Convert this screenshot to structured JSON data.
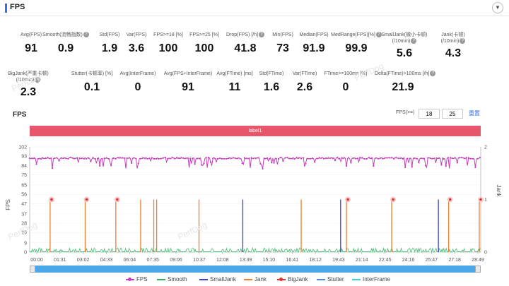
{
  "header": {
    "title": "FPS",
    "collapse_icon": "chevron-down-icon"
  },
  "metrics_row1": [
    {
      "label": "Avg(FPS)",
      "value": "91",
      "help": false
    },
    {
      "label": "Smooth(流畅指数)",
      "value": "0.9",
      "help": true
    },
    {
      "label": "Std(FPS)",
      "value": "1.9",
      "help": false
    },
    {
      "label": "Var(FPS)",
      "value": "3.6",
      "help": false
    },
    {
      "label": "FPS>=18 [%]",
      "value": "100",
      "help": false
    },
    {
      "label": "FPS>=25 [%]",
      "value": "100",
      "help": false
    },
    {
      "label": "Drop(FPS) [/h]",
      "value": "41.8",
      "help": true
    },
    {
      "label": "Min(FPS)",
      "value": "73",
      "help": false
    },
    {
      "label": "Median(FPS)",
      "value": "91.9",
      "help": false
    },
    {
      "label": "MedRange(FPS)[%]",
      "value": "99.9",
      "help": true
    },
    {
      "label": "SmallJank(微小卡顿)",
      "label2": "(/10min)",
      "value": "5.6",
      "help": true
    },
    {
      "label": "Jank(卡顿)",
      "label2": "(/10min)",
      "value": "4.3",
      "help": true
    }
  ],
  "metrics_row2": [
    {
      "label": "BigJank(严重卡顿)",
      "label2": "(/10min)",
      "value": "2.3",
      "help": true
    },
    {
      "label": "Stutter(卡顿率) [%]",
      "value": "0.1",
      "help": false
    },
    {
      "label": "Avg(InterFrame)",
      "value": "0",
      "help": false
    },
    {
      "label": "Avg(FPS+InterFrame)",
      "value": "91",
      "help": false
    },
    {
      "label": "Avg(FTime) [ms]",
      "value": "11",
      "help": false
    },
    {
      "label": "Std(FTime)",
      "value": "1.6",
      "help": false
    },
    {
      "label": "Var(FTime)",
      "value": "2.6",
      "help": false
    },
    {
      "label": "FTime>=100ms [%]",
      "value": "0",
      "help": false
    },
    {
      "label": "Delta(FTime)>100ms [/h]",
      "value": "21.9",
      "help": true
    }
  ],
  "chart_section": {
    "title": "FPS",
    "threshold_label": "FPS(>=)",
    "threshold1": "18",
    "threshold2": "25",
    "reset_label": "重置",
    "label_bar": "label1",
    "watermark": "PerfDog"
  },
  "chart_data": {
    "type": "line",
    "ylabel": "FPS",
    "y2label": "Jank",
    "yticks": [
      "102",
      "93",
      "84",
      "75",
      "65",
      "56",
      "47",
      "37",
      "28",
      "19",
      "9",
      "0"
    ],
    "y2ticks": [
      "2",
      "1",
      "0"
    ],
    "xticks": [
      "00:00",
      "01:31",
      "03:02",
      "04:33",
      "06:04",
      "07:35",
      "09:06",
      "10:37",
      "12:08",
      "13:39",
      "15:10",
      "16:41",
      "18:12",
      "19:43",
      "21:14",
      "22:45",
      "24:16",
      "25:47",
      "27:18",
      "28:49"
    ],
    "ylim": [
      0,
      102
    ],
    "y2lim": [
      0,
      2
    ],
    "fps_baseline": 91,
    "bigjank_times_min": [
      1.5,
      3.9,
      6.0,
      21.8,
      24.9,
      28.8,
      30.9
    ],
    "jank_times_min": [
      1.4,
      3.8,
      5.9,
      7.6,
      8.5,
      8.7,
      11.6,
      18.6,
      21.7,
      24.8,
      28.7,
      30.8
    ],
    "smalljank_times_min": [
      14.6,
      21.3,
      28.0
    ],
    "series": [
      {
        "name": "FPS",
        "color": "#c43fb9"
      },
      {
        "name": "Smooth",
        "color": "#2fb560"
      },
      {
        "name": "SmallJank",
        "color": "#3542d8"
      },
      {
        "name": "Jank",
        "color": "#f07e31"
      },
      {
        "name": "BigJank",
        "color": "#e03232"
      },
      {
        "name": "Stutter",
        "color": "#4c86e8"
      },
      {
        "name": "InterFrame",
        "color": "#3cd4d4"
      }
    ]
  }
}
